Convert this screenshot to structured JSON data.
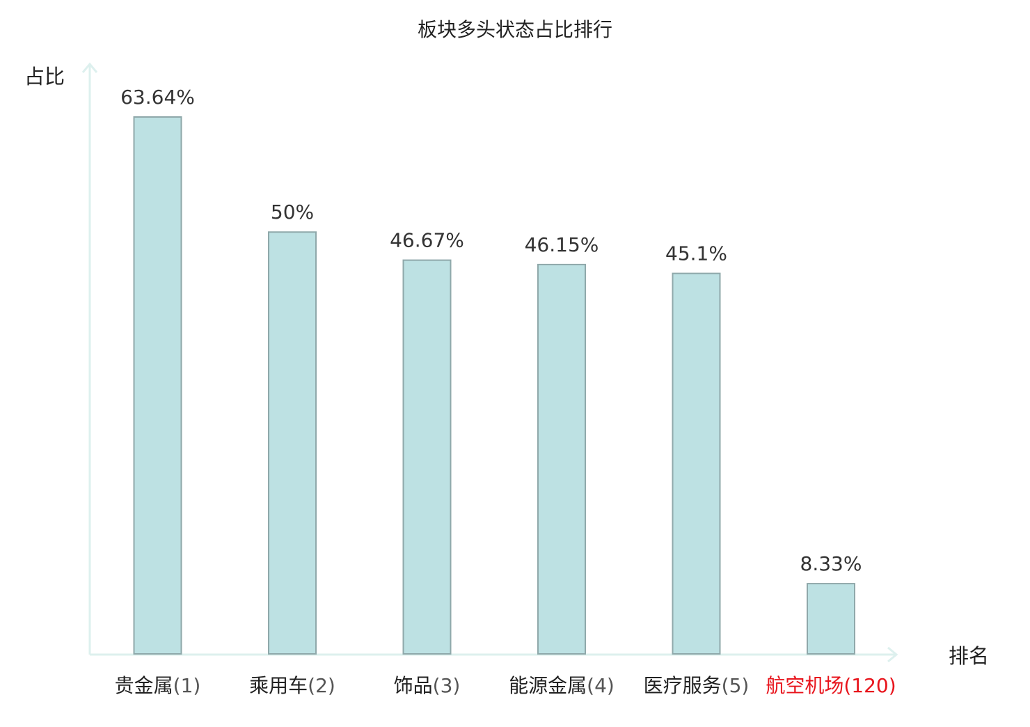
{
  "chart_data": {
    "type": "bar",
    "title": "板块多头状态占比排行",
    "ylabel": "占比",
    "xlabel": "排名",
    "categories": [
      {
        "name": "贵金属",
        "rank": "(1)",
        "highlight": false
      },
      {
        "name": "乘用车",
        "rank": "(2)",
        "highlight": false
      },
      {
        "name": "饰品",
        "rank": "(3)",
        "highlight": false
      },
      {
        "name": "能源金属",
        "rank": "(4)",
        "highlight": false
      },
      {
        "name": "医疗服务",
        "rank": "(5)",
        "highlight": false
      },
      {
        "name": "航空机场",
        "rank": "(120)",
        "highlight": true
      }
    ],
    "values": [
      63.64,
      50,
      46.67,
      46.15,
      45.1,
      8.33
    ],
    "value_labels": [
      "63.64%",
      "50%",
      "46.67%",
      "46.15%",
      "45.1%",
      "8.33%"
    ],
    "ylim": [
      0,
      63.64
    ],
    "grid": false,
    "colors": {
      "bar_fill": "#bde1e3",
      "bar_stroke": "#8fa8aa",
      "axis": "#ddf0ee",
      "text": "#333333",
      "category_text": "#222222",
      "rank_text": "#555555",
      "highlight": "#e8141c"
    }
  }
}
